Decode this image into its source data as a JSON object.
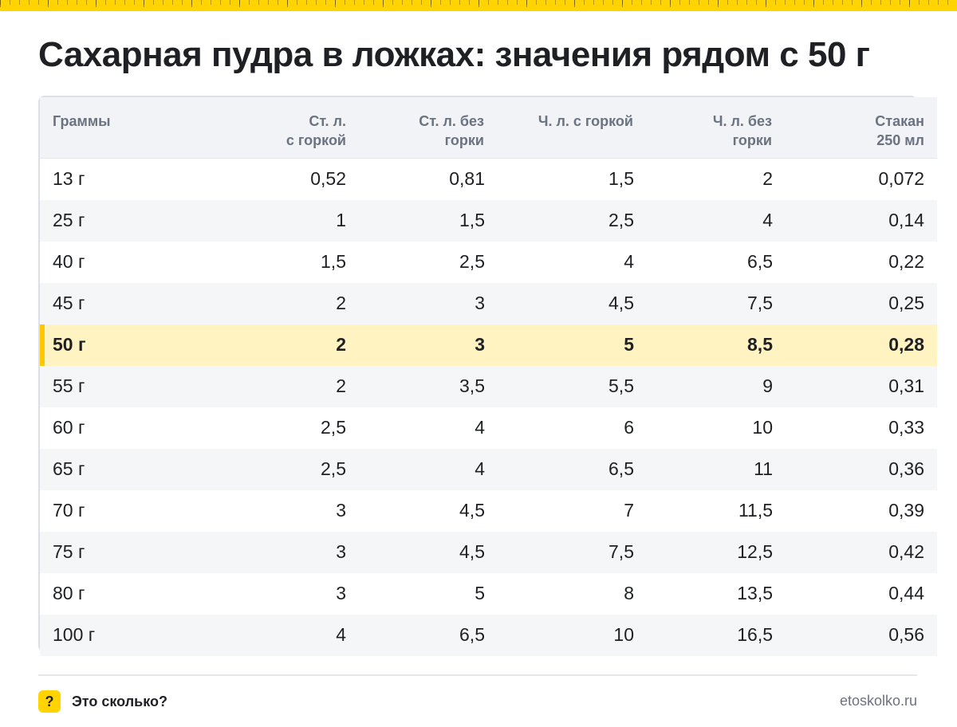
{
  "title": "Сахарная пудра в ложках: значения рядом с 50 г",
  "columns": [
    {
      "lines": [
        "Граммы"
      ]
    },
    {
      "lines": [
        "Ст. л.",
        "с горкой"
      ]
    },
    {
      "lines": [
        "Ст. л. без",
        "горки"
      ]
    },
    {
      "lines": [
        "Ч. л. с горкой"
      ]
    },
    {
      "lines": [
        "Ч. л. без",
        "горки"
      ]
    },
    {
      "lines": [
        "Стакан",
        "250 мл"
      ]
    }
  ],
  "rows": [
    [
      "13 г",
      "0,52",
      "0,81",
      "1,5",
      "2",
      "0,072"
    ],
    [
      "25 г",
      "1",
      "1,5",
      "2,5",
      "4",
      "0,14"
    ],
    [
      "40 г",
      "1,5",
      "2,5",
      "4",
      "6,5",
      "0,22"
    ],
    [
      "45 г",
      "2",
      "3",
      "4,5",
      "7,5",
      "0,25"
    ],
    [
      "50 г",
      "2",
      "3",
      "5",
      "8,5",
      "0,28"
    ],
    [
      "55 г",
      "2",
      "3,5",
      "5,5",
      "9",
      "0,31"
    ],
    [
      "60 г",
      "2,5",
      "4",
      "6",
      "10",
      "0,33"
    ],
    [
      "65 г",
      "2,5",
      "4",
      "6,5",
      "11",
      "0,36"
    ],
    [
      "70 г",
      "3",
      "4,5",
      "7",
      "11,5",
      "0,39"
    ],
    [
      "75 г",
      "3",
      "4,5",
      "7,5",
      "12,5",
      "0,42"
    ],
    [
      "80 г",
      "3",
      "5",
      "8",
      "13,5",
      "0,44"
    ],
    [
      "100 г",
      "4",
      "6,5",
      "10",
      "16,5",
      "0,56"
    ]
  ],
  "highlight_row": 4,
  "footer": {
    "badge": "?",
    "brand": "Это сколько?",
    "site": "etoskolko.ru"
  },
  "colors": {
    "accent": "#ffd400",
    "highlight_bg": "#fff3c2",
    "highlight_bar": "#ffc800"
  }
}
